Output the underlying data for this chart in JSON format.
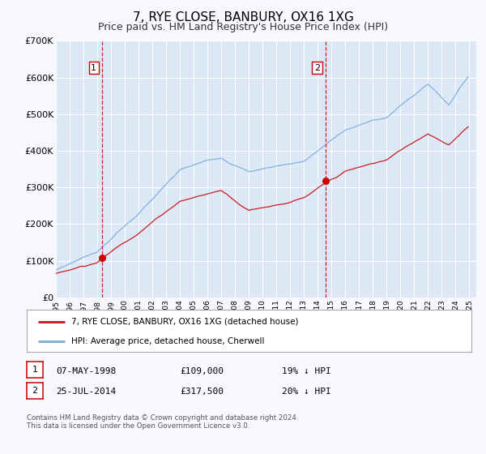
{
  "title": "7, RYE CLOSE, BANBURY, OX16 1XG",
  "subtitle": "Price paid vs. HM Land Registry's House Price Index (HPI)",
  "title_fontsize": 11,
  "subtitle_fontsize": 9,
  "bg_color": "#f8f8ff",
  "plot_bg_color": "#dce8f5",
  "grid_color": "#c8d8e8",
  "sale1_date": 1998.35,
  "sale1_price": 109000,
  "sale2_date": 2014.56,
  "sale2_price": 317500,
  "sale_marker_color": "#cc0000",
  "sale_vline_color": "#cc0000",
  "hpi_line_color": "#7aaadd",
  "price_line_color": "#cc1111",
  "legend_entry1": "7, RYE CLOSE, BANBURY, OX16 1XG (detached house)",
  "legend_entry2": "HPI: Average price, detached house, Cherwell",
  "table_row1": [
    "1",
    "07-MAY-1998",
    "£109,000",
    "19% ↓ HPI"
  ],
  "table_row2": [
    "2",
    "25-JUL-2014",
    "£317,500",
    "20% ↓ HPI"
  ],
  "footer_text": "Contains HM Land Registry data © Crown copyright and database right 2024.\nThis data is licensed under the Open Government Licence v3.0.",
  "xmin": 1995.0,
  "xmax": 2025.5,
  "ymin": 0,
  "ymax": 700000,
  "yticks": [
    0,
    100000,
    200000,
    300000,
    400000,
    500000,
    600000,
    700000
  ],
  "ytick_labels": [
    "£0",
    "£100K",
    "£200K",
    "£300K",
    "£400K",
    "£500K",
    "£600K",
    "£700K"
  ]
}
